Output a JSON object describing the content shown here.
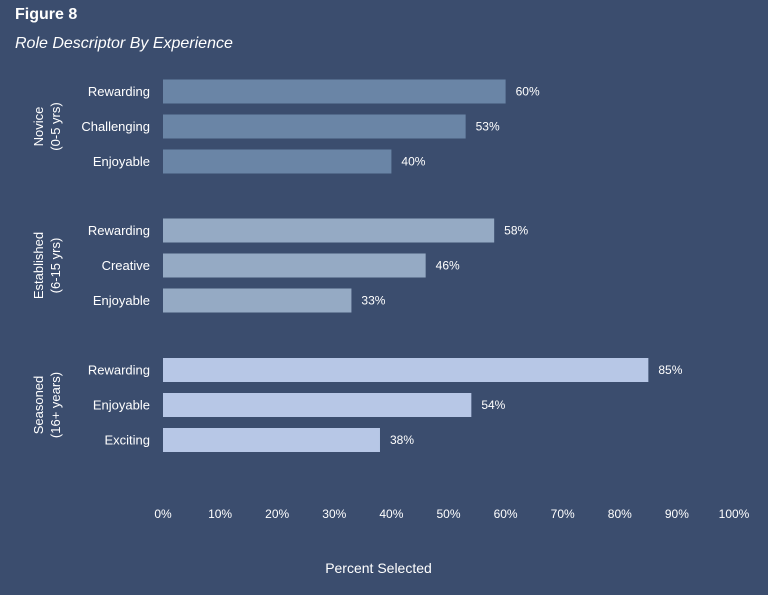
{
  "figure_label": "Figure 8",
  "chart_data": {
    "type": "bar",
    "orientation": "horizontal",
    "title": "Role Descriptor By Experience",
    "xlabel": "Percent Selected",
    "xlim": [
      0,
      100
    ],
    "x_ticks": [
      "0%",
      "10%",
      "20%",
      "30%",
      "40%",
      "50%",
      "60%",
      "70%",
      "80%",
      "90%",
      "100%"
    ],
    "grid": false,
    "groups": [
      {
        "label_lines": [
          "Novice",
          "(0-5 yrs)"
        ],
        "color": "#6a85a6",
        "bars": [
          {
            "category": "Rewarding",
            "value": 60,
            "label": "60%"
          },
          {
            "category": "Challenging",
            "value": 53,
            "label": "53%"
          },
          {
            "category": "Enjoyable",
            "value": 40,
            "label": "40%"
          }
        ]
      },
      {
        "label_lines": [
          "Established",
          "(6-15 yrs)"
        ],
        "color": "#95aac4",
        "bars": [
          {
            "category": "Rewarding",
            "value": 58,
            "label": "58%"
          },
          {
            "category": "Creative",
            "value": 46,
            "label": "46%"
          },
          {
            "category": "Enjoyable",
            "value": 33,
            "label": "33%"
          }
        ]
      },
      {
        "label_lines": [
          "Seasoned",
          "(16+ years)"
        ],
        "color": "#b7c7e6",
        "bars": [
          {
            "category": "Rewarding",
            "value": 85,
            "label": "85%"
          },
          {
            "category": "Enjoyable",
            "value": 54,
            "label": "54%"
          },
          {
            "category": "Exciting",
            "value": 38,
            "label": "38%"
          }
        ]
      }
    ]
  }
}
